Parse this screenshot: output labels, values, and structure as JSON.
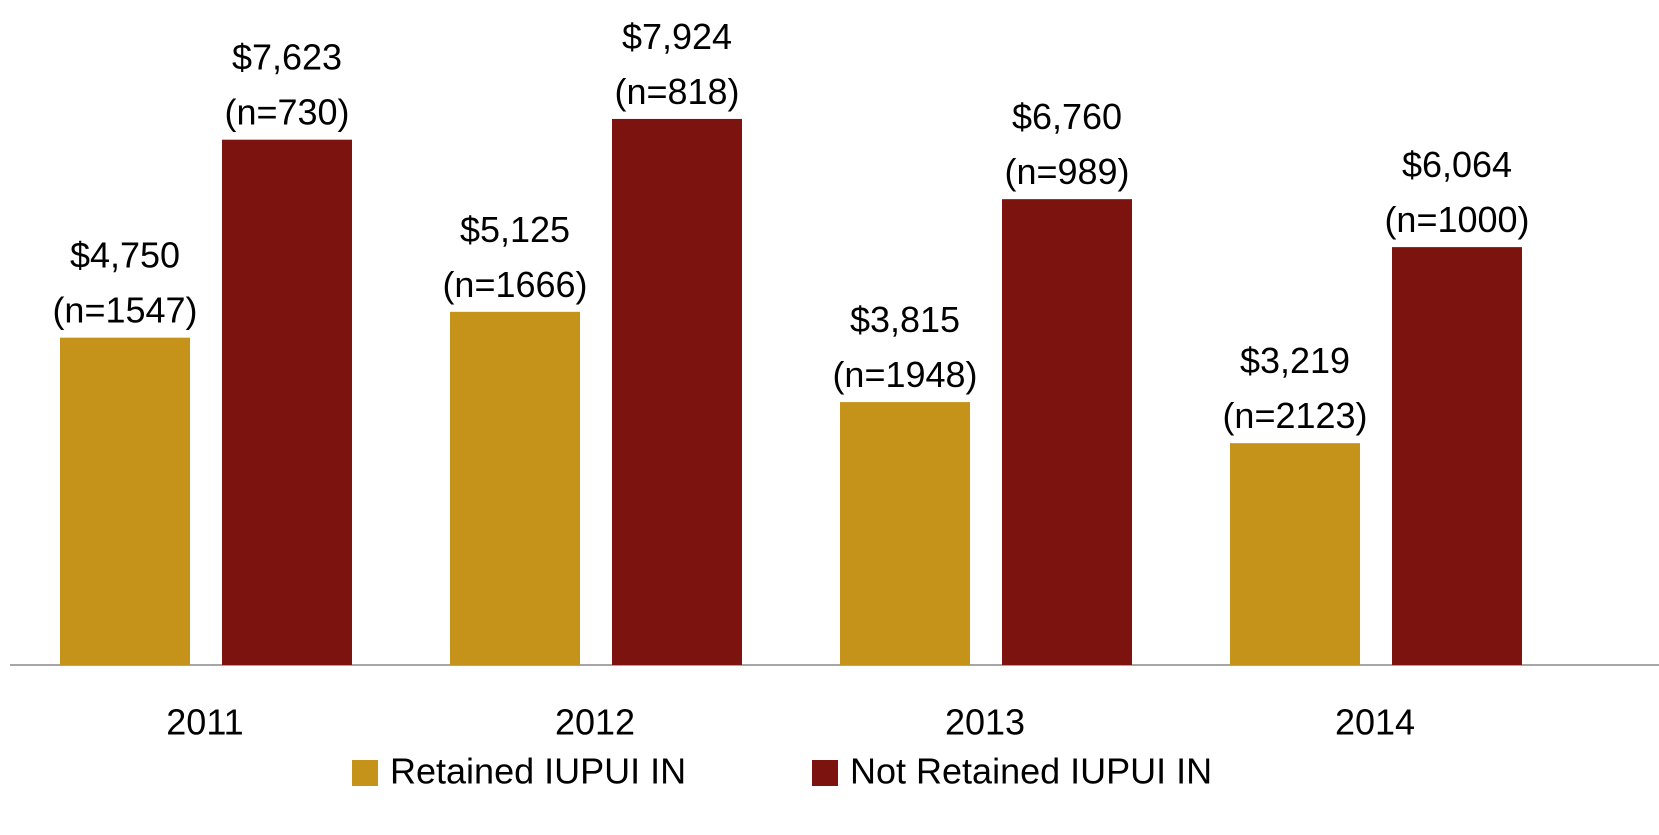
{
  "chart_data": {
    "type": "bar",
    "categories": [
      "2011",
      "2012",
      "2013",
      "2014"
    ],
    "series": [
      {
        "name": "Retained IUPUI IN",
        "color": "#c5921a",
        "values": [
          4750,
          5125,
          3815,
          3219
        ],
        "value_labels": [
          "$4,750 (n=1547)",
          "$5,125 (n=1666)",
          "$3,815 (n=1948)",
          "$3,219 (n=2123)"
        ]
      },
      {
        "name": "Not Retained IUPUI IN",
        "color": "#7c130e",
        "values": [
          7623,
          7924,
          6760,
          6064
        ],
        "value_labels": [
          "$7,623 (n=730)",
          "$7,924 (n=818)",
          "$6,760 (n=989)",
          "$6,064 (n=1000)"
        ]
      }
    ],
    "ylim": [
      0,
      9650
    ],
    "legend": "bottom"
  }
}
